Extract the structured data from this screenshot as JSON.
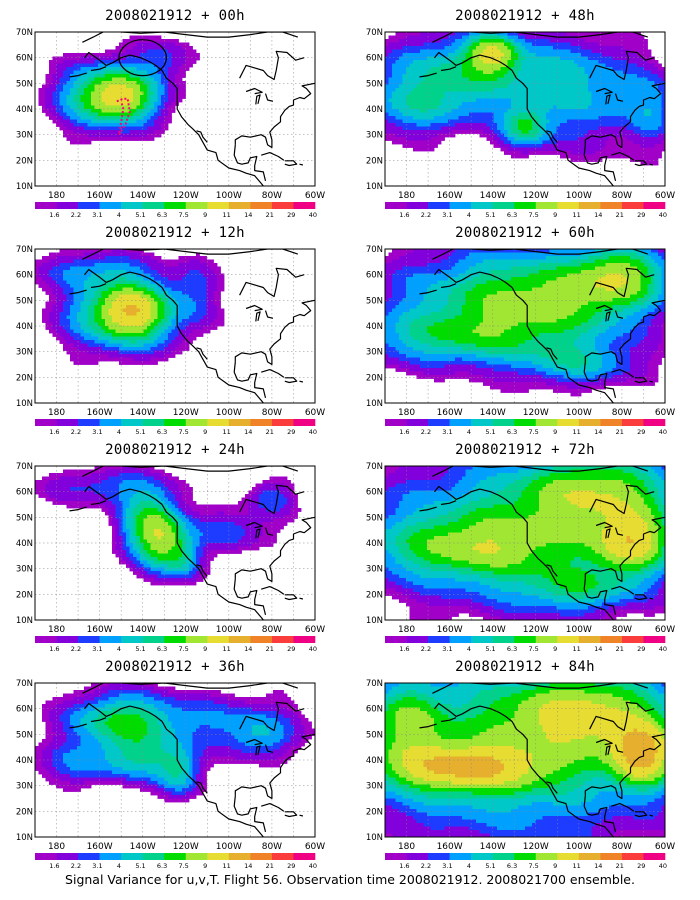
{
  "figure": {
    "caption": "Signal Variance for u,v,T. Flight 56. Observation time 2008021912. 2008021700 ensemble.",
    "lat_labels": [
      "70N",
      "60N",
      "50N",
      "40N",
      "30N",
      "20N",
      "10N"
    ],
    "lon_labels": [
      "180",
      "160W",
      "140W",
      "120W",
      "100W",
      "80W",
      "60W"
    ],
    "color_scale": {
      "labels": [
        "1.6",
        "2.2",
        "3.1",
        "4",
        "5.1",
        "6.3",
        "7.5",
        "9",
        "11",
        "14",
        "21",
        "29",
        "40"
      ],
      "colors": [
        "#a000c8",
        "#8200dc",
        "#1e3cff",
        "#00a0ff",
        "#00c8c8",
        "#00d28c",
        "#00dc00",
        "#a0e632",
        "#e6dc32",
        "#e6af2d",
        "#f08228",
        "#fa3c3c",
        "#f00082"
      ]
    },
    "colors": {
      "land_outline": "#000000",
      "grid": "#888888",
      "track": "#ff0078",
      "background": "#ffffff"
    }
  },
  "panels": [
    {
      "title": "2008021912 + 00h",
      "column": 0,
      "row": 0
    },
    {
      "title": "2008021912 + 12h",
      "column": 0,
      "row": 1
    },
    {
      "title": "2008021912 + 24h",
      "column": 0,
      "row": 2
    },
    {
      "title": "2008021912 + 36h",
      "column": 0,
      "row": 3
    },
    {
      "title": "2008021912 + 48h",
      "column": 1,
      "row": 0
    },
    {
      "title": "2008021912 + 60h",
      "column": 1,
      "row": 1
    },
    {
      "title": "2008021912 + 72h",
      "column": 1,
      "row": 2
    },
    {
      "title": "2008021912 + 84h",
      "column": 1,
      "row": 3
    }
  ],
  "chart_data": {
    "type": "heatmap",
    "variable": "Signal Variance for u,v,T",
    "domain": {
      "lon_range": [
        -190,
        -60
      ],
      "lat_range": [
        10,
        70
      ]
    },
    "levels": [
      1.6,
      2.2,
      3.1,
      4,
      5.1,
      6.3,
      7.5,
      9,
      11,
      14,
      21,
      29,
      40
    ],
    "features": {
      "+ 00h": [
        {
          "lon": -155,
          "lat": 45,
          "slon": 16,
          "slat": 9,
          "amp": 9
        },
        {
          "lon": -150,
          "lat": 45,
          "slon": 9,
          "slat": 5,
          "amp": 4
        },
        {
          "lon": -130,
          "lat": 60,
          "slon": 9,
          "slat": 6,
          "amp": 2.5
        }
      ],
      "+ 12h": [
        {
          "lon": -148,
          "lat": 45,
          "slon": 18,
          "slat": 10,
          "amp": 9
        },
        {
          "lon": -145,
          "lat": 46,
          "slon": 9,
          "slat": 6,
          "amp": 5
        },
        {
          "lon": -165,
          "lat": 62,
          "slon": 18,
          "slat": 5,
          "amp": 3
        },
        {
          "lon": -115,
          "lat": 55,
          "slon": 8,
          "slat": 10,
          "amp": 2
        }
      ],
      "+ 24h": [
        {
          "lon": -137,
          "lat": 47,
          "slon": 10,
          "slat": 10,
          "amp": 7
        },
        {
          "lon": -130,
          "lat": 40,
          "slon": 7,
          "slat": 8,
          "amp": 5
        },
        {
          "lon": -120,
          "lat": 33,
          "slon": 6,
          "slat": 6,
          "amp": 4
        },
        {
          "lon": -160,
          "lat": 62,
          "slon": 20,
          "slat": 5,
          "amp": 3
        },
        {
          "lon": -100,
          "lat": 45,
          "slon": 16,
          "slat": 6,
          "amp": 3
        },
        {
          "lon": -80,
          "lat": 58,
          "slon": 8,
          "slat": 5,
          "amp": 3
        }
      ],
      "+ 36h": [
        {
          "lon": -150,
          "lat": 55,
          "slon": 18,
          "slat": 8,
          "amp": 7
        },
        {
          "lon": -140,
          "lat": 40,
          "slon": 12,
          "slat": 6,
          "amp": 4
        },
        {
          "lon": -123,
          "lat": 35,
          "slon": 7,
          "slat": 7,
          "amp": 5
        },
        {
          "lon": -170,
          "lat": 38,
          "slon": 16,
          "slat": 6,
          "amp": 3
        },
        {
          "lon": -100,
          "lat": 55,
          "slon": 25,
          "slat": 8,
          "amp": 3
        },
        {
          "lon": -85,
          "lat": 48,
          "slon": 10,
          "slat": 6,
          "amp": 3
        }
      ],
      "+ 48h": [
        {
          "lon": -150,
          "lat": 55,
          "slon": 30,
          "slat": 10,
          "amp": 6
        },
        {
          "lon": -140,
          "lat": 62,
          "slon": 8,
          "slat": 5,
          "amp": 7
        },
        {
          "lon": -125,
          "lat": 33,
          "slon": 8,
          "slat": 6,
          "amp": 6
        },
        {
          "lon": -175,
          "lat": 40,
          "slon": 20,
          "slat": 8,
          "amp": 4
        },
        {
          "lon": -95,
          "lat": 45,
          "slon": 20,
          "slat": 15,
          "amp": 4
        },
        {
          "lon": -65,
          "lat": 40,
          "slon": 8,
          "slat": 10,
          "amp": 3
        }
      ],
      "+ 60h": [
        {
          "lon": -140,
          "lat": 50,
          "slon": 40,
          "slat": 15,
          "amp": 5
        },
        {
          "lon": -110,
          "lat": 50,
          "slon": 30,
          "slat": 12,
          "amp": 5
        },
        {
          "lon": -80,
          "lat": 60,
          "slon": 15,
          "slat": 8,
          "amp": 7
        },
        {
          "lon": -160,
          "lat": 35,
          "slon": 30,
          "slat": 7,
          "amp": 4
        },
        {
          "lon": -100,
          "lat": 25,
          "slon": 20,
          "slat": 6,
          "amp": 4
        }
      ],
      "+ 72h": [
        {
          "lon": -130,
          "lat": 45,
          "slon": 50,
          "slat": 20,
          "amp": 6
        },
        {
          "lon": -90,
          "lat": 60,
          "slon": 25,
          "slat": 10,
          "amp": 7
        },
        {
          "lon": -75,
          "lat": 40,
          "slon": 12,
          "slat": 8,
          "amp": 9
        },
        {
          "lon": -150,
          "lat": 38,
          "slon": 30,
          "slat": 8,
          "amp": 5
        },
        {
          "lon": -100,
          "lat": 22,
          "slon": 20,
          "slat": 6,
          "amp": 4
        }
      ],
      "+ 84h": [
        {
          "lon": -130,
          "lat": 45,
          "slon": 55,
          "slat": 25,
          "amp": 7
        },
        {
          "lon": -155,
          "lat": 37,
          "slon": 25,
          "slat": 6,
          "amp": 9
        },
        {
          "lon": -70,
          "lat": 42,
          "slon": 10,
          "slat": 8,
          "amp": 11
        },
        {
          "lon": -95,
          "lat": 58,
          "slon": 25,
          "slat": 10,
          "amp": 7
        },
        {
          "lon": -180,
          "lat": 55,
          "slon": 12,
          "slat": 10,
          "amp": 5
        }
      ]
    },
    "annotations": {
      "+ 00h": {
        "ellipse": {
          "lon": -140,
          "lat": 60,
          "rlon": 11,
          "rlat": 7
        },
        "flight_track": [
          [
            -152,
            43
          ],
          [
            -149,
            44
          ],
          [
            -147,
            44
          ],
          [
            -146,
            39
          ],
          [
            -148,
            34
          ],
          [
            -151,
            30
          ],
          [
            -150,
            35
          ],
          [
            -149,
            40
          ],
          [
            -150,
            43
          ]
        ]
      }
    },
    "title": "",
    "xlabel": "",
    "ylabel": ""
  }
}
